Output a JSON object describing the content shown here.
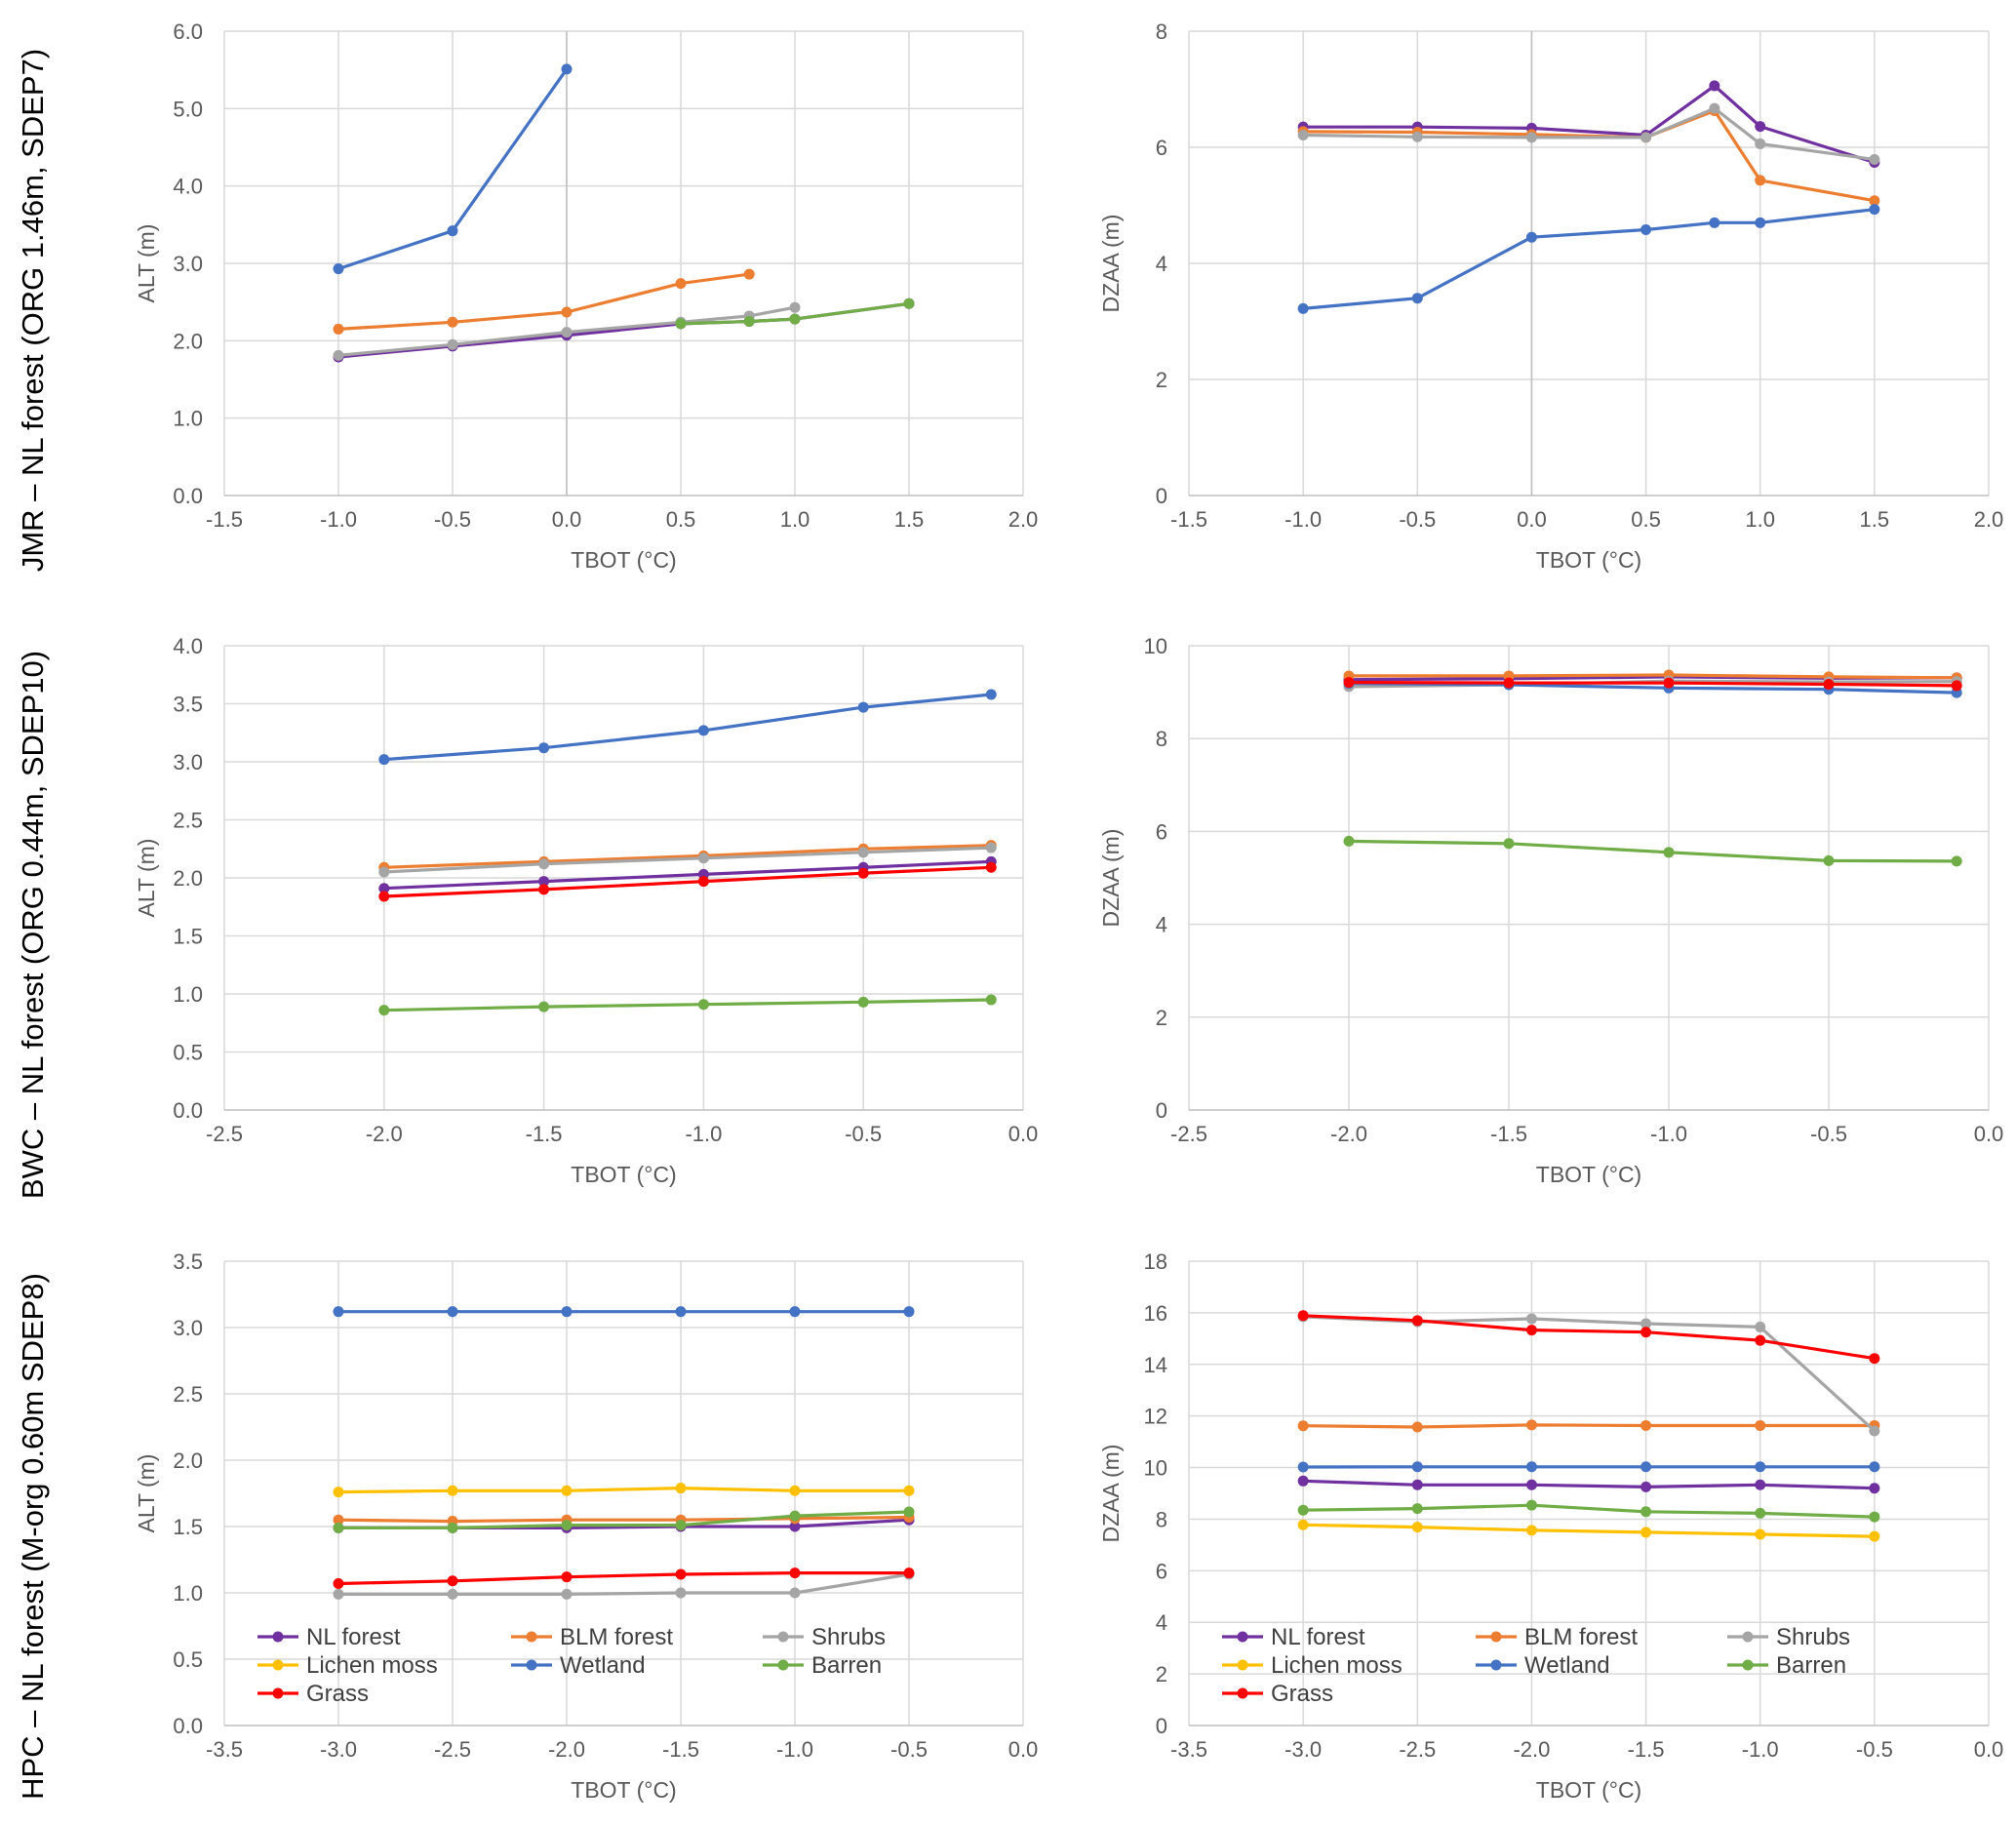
{
  "series_colors": {
    "NL forest": "#7030a0",
    "BLM forest": "#ed7d31",
    "Shrubs": "#a5a5a5",
    "Lichen moss": "#ffc000",
    "Wetland": "#4472c4",
    "Barren": "#70ad47",
    "Grass": "#ff0000"
  },
  "row_titles": [
    "JMR – NL forest (ORG 1.46m, SDEP7)",
    "BWC – NL forest (ORG 0.44m, SDEP10)",
    "HPC – NL forest (M-org 0.60m SDEP8)"
  ],
  "legend": [
    "NL forest",
    "BLM forest",
    "Shrubs",
    "Lichen moss",
    "Wetland",
    "Barren",
    "Grass"
  ],
  "chart_data": [
    {
      "type": "line",
      "panel": "JMR-ALT",
      "title": "",
      "xlabel": "TBOT (°C)",
      "ylabel": "ALT (m)",
      "xlim": [
        -1.5,
        2.0
      ],
      "xstep": 0.5,
      "xdec": 1,
      "ylim": [
        0.0,
        6.0
      ],
      "ystep": 1.0,
      "ydec": 1,
      "series": [
        {
          "name": "NL forest",
          "x": [
            -1.0,
            -0.5,
            0.0,
            0.5,
            0.8,
            1.0,
            1.5
          ],
          "values": [
            1.79,
            1.93,
            2.07,
            2.22,
            2.25,
            2.28,
            2.48
          ]
        },
        {
          "name": "BLM forest",
          "x": [
            -1.0,
            -0.5,
            0.0,
            0.5,
            0.8
          ],
          "values": [
            2.15,
            2.24,
            2.37,
            2.74,
            2.86
          ]
        },
        {
          "name": "Shrubs",
          "x": [
            -1.0,
            -0.5,
            0.0,
            0.5,
            0.8,
            1.0
          ],
          "values": [
            1.81,
            1.95,
            2.11,
            2.24,
            2.32,
            2.43
          ]
        },
        {
          "name": "Wetland",
          "x": [
            -1.0,
            -0.5,
            0.0
          ],
          "values": [
            2.93,
            3.42,
            5.51
          ]
        },
        {
          "name": "Barren",
          "x": [
            0.5,
            0.8,
            1.0,
            1.5
          ],
          "values": [
            2.22,
            2.25,
            2.28,
            2.48
          ]
        }
      ]
    },
    {
      "type": "line",
      "panel": "JMR-DZAA",
      "title": "",
      "xlabel": "TBOT (°C)",
      "ylabel": "DZAA (m)",
      "xlim": [
        -1.5,
        2.0
      ],
      "xstep": 0.5,
      "xdec": 1,
      "ylim": [
        0,
        8
      ],
      "ystep": 2,
      "ydec": 0,
      "series": [
        {
          "name": "NL forest",
          "x": [
            -1.0,
            -0.5,
            0.0,
            0.5,
            0.8,
            1.0,
            1.5
          ],
          "values": [
            6.35,
            6.35,
            6.33,
            6.21,
            7.06,
            6.36,
            5.74
          ]
        },
        {
          "name": "BLM forest",
          "x": [
            -1.0,
            -0.5,
            0.0,
            0.5,
            0.8,
            1.0,
            1.5
          ],
          "values": [
            6.27,
            6.26,
            6.22,
            6.17,
            6.63,
            5.43,
            5.08
          ]
        },
        {
          "name": "Shrubs",
          "x": [
            -1.0,
            -0.5,
            0.0,
            0.5,
            0.8,
            1.0,
            1.5
          ],
          "values": [
            6.21,
            6.18,
            6.17,
            6.17,
            6.67,
            6.06,
            5.79
          ]
        },
        {
          "name": "Wetland",
          "x": [
            -1.0,
            -0.5,
            0.0,
            0.5,
            0.8,
            1.0,
            1.5
          ],
          "values": [
            3.22,
            3.4,
            4.45,
            4.58,
            4.7,
            4.7,
            4.93
          ]
        }
      ]
    },
    {
      "type": "line",
      "panel": "BWC-ALT",
      "title": "",
      "xlabel": "TBOT (°C)",
      "ylabel": "ALT (m)",
      "xlim": [
        -2.5,
        0.0
      ],
      "xstep": 0.5,
      "xdec": 1,
      "ylim": [
        0.0,
        4.0
      ],
      "ystep": 0.5,
      "ydec": 1,
      "series": [
        {
          "name": "NL forest",
          "x": [
            -2.0,
            -1.5,
            -1.0,
            -0.5,
            -0.1
          ],
          "values": [
            1.91,
            1.97,
            2.03,
            2.09,
            2.14
          ]
        },
        {
          "name": "BLM forest",
          "x": [
            -2.0,
            -1.5,
            -1.0,
            -0.5,
            -0.1
          ],
          "values": [
            2.09,
            2.14,
            2.19,
            2.25,
            2.28
          ]
        },
        {
          "name": "Shrubs",
          "x": [
            -2.0,
            -1.5,
            -1.0,
            -0.5,
            -0.1
          ],
          "values": [
            2.05,
            2.12,
            2.17,
            2.22,
            2.26
          ]
        },
        {
          "name": "Wetland",
          "x": [
            -2.0,
            -1.5,
            -1.0,
            -0.5,
            -0.1
          ],
          "values": [
            3.02,
            3.12,
            3.27,
            3.47,
            3.58
          ]
        },
        {
          "name": "Barren",
          "x": [
            -2.0,
            -1.5,
            -1.0,
            -0.5,
            -0.1
          ],
          "values": [
            0.86,
            0.89,
            0.91,
            0.93,
            0.95
          ]
        },
        {
          "name": "Grass",
          "x": [
            -2.0,
            -1.5,
            -1.0,
            -0.5,
            -0.1
          ],
          "values": [
            1.84,
            1.9,
            1.97,
            2.04,
            2.09
          ]
        }
      ]
    },
    {
      "type": "line",
      "panel": "BWC-DZAA",
      "title": "",
      "xlabel": "TBOT (°C)",
      "ylabel": "DZAA (m)",
      "xlim": [
        -2.5,
        0.0
      ],
      "xstep": 0.5,
      "xdec": 1,
      "ylim": [
        0,
        10
      ],
      "ystep": 2,
      "ydec": 0,
      "series": [
        {
          "name": "NL forest",
          "x": [
            -2.0,
            -1.5,
            -1.0,
            -0.5,
            -0.1
          ],
          "values": [
            9.27,
            9.29,
            9.33,
            9.3,
            9.31
          ]
        },
        {
          "name": "BLM forest",
          "x": [
            -2.0,
            -1.5,
            -1.0,
            -0.5,
            -0.1
          ],
          "values": [
            9.35,
            9.35,
            9.37,
            9.33,
            9.31
          ]
        },
        {
          "name": "Shrubs",
          "x": [
            -2.0,
            -1.5,
            -1.0,
            -0.5,
            -0.1
          ],
          "values": [
            9.12,
            9.16,
            9.24,
            9.22,
            9.23
          ]
        },
        {
          "name": "Wetland",
          "x": [
            -2.0,
            -1.5,
            -1.0,
            -0.5,
            -0.1
          ],
          "values": [
            9.19,
            9.16,
            9.09,
            9.06,
            8.99
          ]
        },
        {
          "name": "Barren",
          "x": [
            -2.0,
            -1.5,
            -1.0,
            -0.5,
            -0.1
          ],
          "values": [
            5.79,
            5.74,
            5.55,
            5.37,
            5.36
          ]
        },
        {
          "name": "Grass",
          "x": [
            -2.0,
            -1.5,
            -1.0,
            -0.5,
            -0.1
          ],
          "values": [
            9.21,
            9.2,
            9.2,
            9.17,
            9.14
          ]
        }
      ]
    },
    {
      "type": "line",
      "panel": "HPC-ALT",
      "title": "",
      "xlabel": "TBOT (°C)",
      "ylabel": "ALT (m)",
      "xlim": [
        -3.5,
        0.0
      ],
      "xstep": 0.5,
      "xdec": 1,
      "ylim": [
        0.0,
        3.5
      ],
      "ystep": 0.5,
      "ydec": 1,
      "legend": true,
      "series": [
        {
          "name": "NL forest",
          "x": [
            -3.0,
            -2.5,
            -2.0,
            -1.5,
            -1.0,
            -0.5
          ],
          "values": [
            1.49,
            1.49,
            1.49,
            1.5,
            1.5,
            1.55
          ]
        },
        {
          "name": "BLM forest",
          "x": [
            -3.0,
            -2.5,
            -2.0,
            -1.5,
            -1.0,
            -0.5
          ],
          "values": [
            1.55,
            1.54,
            1.55,
            1.55,
            1.56,
            1.57
          ]
        },
        {
          "name": "Shrubs",
          "x": [
            -3.0,
            -2.5,
            -2.0,
            -1.5,
            -1.0,
            -0.5
          ],
          "values": [
            0.99,
            0.99,
            0.99,
            1.0,
            1.0,
            1.14
          ]
        },
        {
          "name": "Lichen moss",
          "x": [
            -3.0,
            -2.5,
            -2.0,
            -1.5,
            -1.0,
            -0.5
          ],
          "values": [
            1.76,
            1.77,
            1.77,
            1.79,
            1.77,
            1.77
          ]
        },
        {
          "name": "Wetland",
          "x": [
            -3.0,
            -2.5,
            -2.0,
            -1.5,
            -1.0,
            -0.5
          ],
          "values": [
            3.12,
            3.12,
            3.12,
            3.12,
            3.12,
            3.12
          ]
        },
        {
          "name": "Barren",
          "x": [
            -3.0,
            -2.5,
            -2.0,
            -1.5,
            -1.0,
            -0.5
          ],
          "values": [
            1.49,
            1.49,
            1.51,
            1.51,
            1.58,
            1.61
          ]
        },
        {
          "name": "Grass",
          "x": [
            -3.0,
            -2.5,
            -2.0,
            -1.5,
            -1.0,
            -0.5
          ],
          "values": [
            1.07,
            1.09,
            1.12,
            1.14,
            1.15,
            1.15
          ]
        }
      ]
    },
    {
      "type": "line",
      "panel": "HPC-DZAA",
      "title": "",
      "xlabel": "TBOT (°C)",
      "ylabel": "DZAA (m)",
      "xlim": [
        -3.5,
        0.0
      ],
      "xstep": 0.5,
      "xdec": 1,
      "ylim": [
        0,
        18
      ],
      "ystep": 2,
      "ydec": 0,
      "legend": true,
      "series": [
        {
          "name": "NL forest",
          "x": [
            -3.0,
            -2.5,
            -2.0,
            -1.5,
            -1.0,
            -0.5
          ],
          "values": [
            9.48,
            9.33,
            9.33,
            9.25,
            9.33,
            9.2
          ]
        },
        {
          "name": "BLM forest",
          "x": [
            -3.0,
            -2.5,
            -2.0,
            -1.5,
            -1.0,
            -0.5
          ],
          "values": [
            11.62,
            11.57,
            11.65,
            11.63,
            11.63,
            11.63
          ]
        },
        {
          "name": "Shrubs",
          "x": [
            -3.0,
            -2.5,
            -2.0,
            -1.5,
            -1.0,
            -0.5
          ],
          "values": [
            15.85,
            15.65,
            15.77,
            15.58,
            15.45,
            11.42
          ]
        },
        {
          "name": "Lichen moss",
          "x": [
            -3.0,
            -2.5,
            -2.0,
            -1.5,
            -1.0,
            -0.5
          ],
          "values": [
            7.78,
            7.69,
            7.57,
            7.49,
            7.41,
            7.33
          ]
        },
        {
          "name": "Wetland",
          "x": [
            -3.0,
            -2.5,
            -2.0,
            -1.5,
            -1.0,
            -0.5
          ],
          "values": [
            10.02,
            10.03,
            10.03,
            10.03,
            10.03,
            10.03
          ]
        },
        {
          "name": "Barren",
          "x": [
            -3.0,
            -2.5,
            -2.0,
            -1.5,
            -1.0,
            -0.5
          ],
          "values": [
            8.35,
            8.41,
            8.54,
            8.29,
            8.23,
            8.09
          ]
        },
        {
          "name": "Grass",
          "x": [
            -3.0,
            -2.5,
            -2.0,
            -1.5,
            -1.0,
            -0.5
          ],
          "values": [
            15.89,
            15.7,
            15.33,
            15.25,
            14.93,
            14.23
          ]
        }
      ]
    }
  ]
}
